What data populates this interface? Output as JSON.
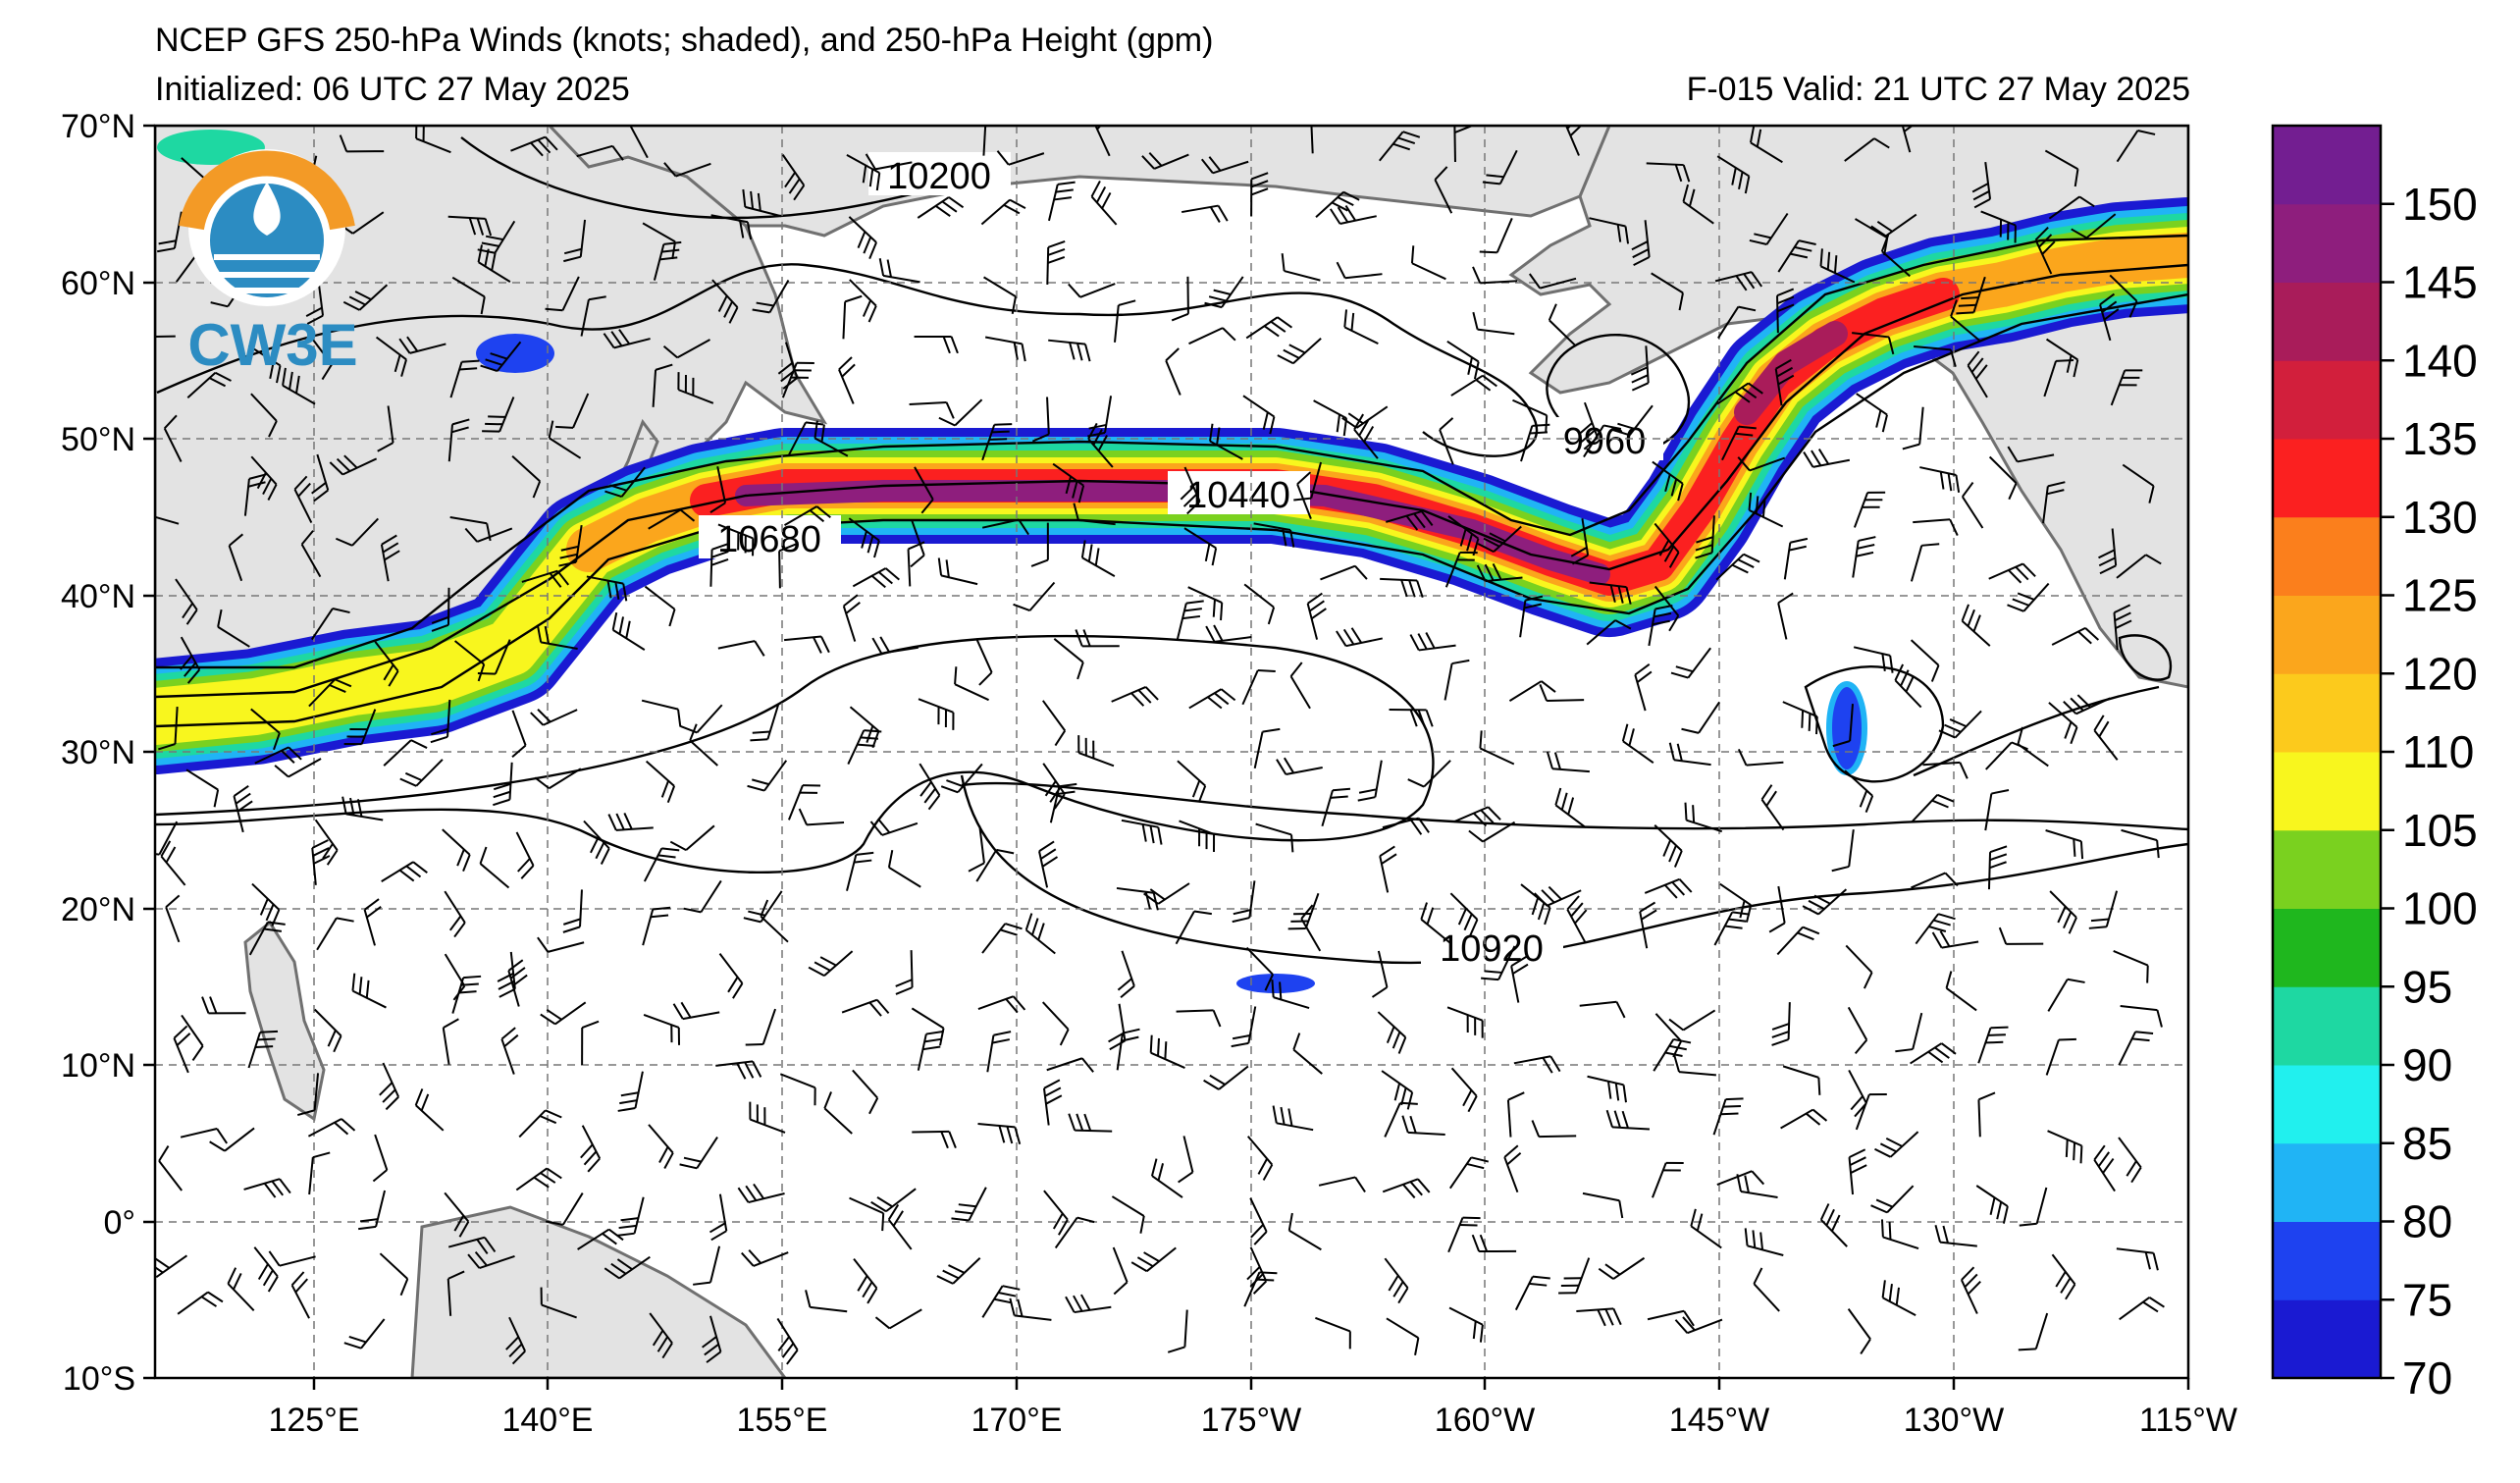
{
  "header": {
    "title": "NCEP GFS 250-hPa Winds (knots; shaded), and 250-hPa Height (gpm)",
    "initialized": "Initialized: 06 UTC 27 May 2025",
    "valid": "F-015  Valid: 21 UTC 27 May 2025"
  },
  "logo": {
    "text": "CW3E",
    "icon": "water-drop-logo-icon",
    "colors": {
      "orange": "#f39a26",
      "blue": "#2c8cc2",
      "teal": "#1b7fa6"
    }
  },
  "axes": {
    "lat_labels": [
      "70°N",
      "60°N",
      "50°N",
      "40°N",
      "30°N",
      "20°N",
      "10°N",
      "0°",
      "10°S"
    ],
    "lon_labels": [
      "125°E",
      "140°E",
      "155°E",
      "170°E",
      "175°W",
      "160°W",
      "145°W",
      "130°W",
      "115°W"
    ]
  },
  "contour_labels": [
    "10200",
    "9960",
    "10440",
    "10680",
    "10920"
  ],
  "colorbar": {
    "ticks": [
      "70",
      "75",
      "80",
      "85",
      "90",
      "95",
      "100",
      "105",
      "110",
      "120",
      "125",
      "130",
      "135",
      "140",
      "145",
      "150"
    ],
    "colors": [
      "#1a1ad2",
      "#1e42f0",
      "#20b4f5",
      "#21f0ee",
      "#1ed8a2",
      "#1fb71e",
      "#7ad11f",
      "#f8f61e",
      "#fcca1c",
      "#fba61c",
      "#fb7f1c",
      "#fb2020",
      "#d21f3c",
      "#a91c5a",
      "#8e1e7d",
      "#731e91"
    ]
  }
}
